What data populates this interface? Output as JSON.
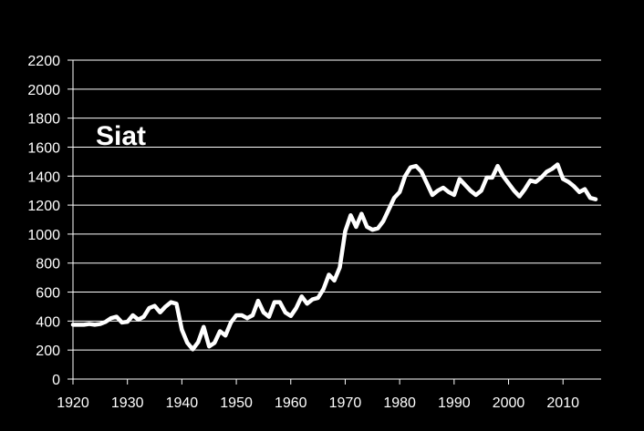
{
  "chart_data": {
    "type": "line",
    "title": "Siat",
    "xlabel": "",
    "ylabel": "",
    "xlim": [
      1920,
      2017
    ],
    "ylim": [
      0,
      2200
    ],
    "x_ticks": [
      1920,
      1930,
      1940,
      1950,
      1960,
      1970,
      1980,
      1990,
      2000,
      2010
    ],
    "y_ticks": [
      0,
      200,
      400,
      600,
      800,
      1000,
      1200,
      1400,
      1600,
      1800,
      2000,
      2200
    ],
    "grid": "horizontal",
    "legend": "none",
    "colors": {
      "background": "#000000",
      "line": "#ffffff",
      "grid": "#ffffff",
      "text": "#ffffff"
    },
    "series": [
      {
        "x": [
          1920,
          1921,
          1922,
          1923,
          1924,
          1925,
          1926,
          1927,
          1928,
          1929,
          1930,
          1931,
          1932,
          1933,
          1934,
          1935,
          1936,
          1937,
          1938,
          1939,
          1940,
          1941,
          1942,
          1943,
          1944,
          1945,
          1946,
          1947,
          1948,
          1949,
          1950,
          1951,
          1952,
          1953,
          1954,
          1955,
          1956,
          1957,
          1958,
          1959,
          1960,
          1961,
          1962,
          1963,
          1964,
          1965,
          1966,
          1967,
          1968,
          1969,
          1970,
          1971,
          1972,
          1973,
          1974,
          1975,
          1976,
          1977,
          1978,
          1979,
          1980,
          1981,
          1982,
          1983,
          1984,
          1985,
          1986,
          1987,
          1988,
          1989,
          1990,
          1991,
          1992,
          1993,
          1994,
          1995,
          1996,
          1997,
          1998,
          1999,
          2000,
          2001,
          2002,
          2003,
          2004,
          2005,
          2006,
          2007,
          2008,
          2009,
          2010,
          2011,
          2012,
          2013,
          2014,
          2015,
          2016
        ],
        "values": [
          375,
          375,
          375,
          380,
          375,
          380,
          395,
          420,
          430,
          390,
          395,
          440,
          410,
          430,
          490,
          505,
          460,
          500,
          530,
          520,
          340,
          250,
          205,
          255,
          360,
          225,
          250,
          330,
          300,
          390,
          440,
          440,
          420,
          440,
          540,
          460,
          430,
          530,
          530,
          460,
          435,
          490,
          570,
          520,
          550,
          560,
          620,
          720,
          680,
          770,
          1020,
          1130,
          1050,
          1140,
          1050,
          1030,
          1040,
          1090,
          1170,
          1250,
          1290,
          1400,
          1460,
          1470,
          1430,
          1350,
          1270,
          1300,
          1320,
          1290,
          1270,
          1380,
          1340,
          1300,
          1270,
          1300,
          1390,
          1390,
          1470,
          1400,
          1350,
          1300,
          1260,
          1310,
          1370,
          1360,
          1390,
          1430,
          1450,
          1480,
          1380,
          1360,
          1330,
          1290,
          1310,
          1250,
          1240
        ]
      }
    ]
  }
}
